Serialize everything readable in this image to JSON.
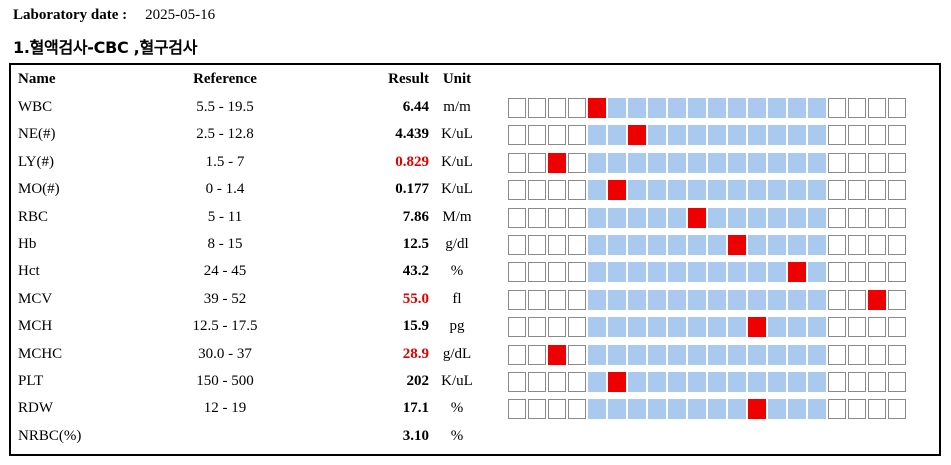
{
  "header": {
    "lab_date_label": "Laboratory date :",
    "lab_date_value": "2025-05-16"
  },
  "section_title": "1.혈액검사-CBC ,혈구검사",
  "columns": {
    "name": "Name",
    "reference": "Reference",
    "result": "Result",
    "unit": "Unit"
  },
  "colors": {
    "normal_range": "#a9c9ee",
    "marker": "#ee0000",
    "abnormal_text": "#e00000"
  },
  "rows": [
    {
      "name": "WBC",
      "reference": "5.5 - 19.5",
      "result": "6.44",
      "unit": "m/m",
      "abnormal": false,
      "marker_box": 4
    },
    {
      "name": "NE(#)",
      "reference": "2.5 - 12.8",
      "result": "4.439",
      "unit": "K/uL",
      "abnormal": false,
      "marker_box": 6
    },
    {
      "name": "LY(#)",
      "reference": "1.5 - 7",
      "result": "0.829",
      "unit": "K/uL",
      "abnormal": true,
      "marker_box": 2
    },
    {
      "name": "MO(#)",
      "reference": "0 - 1.4",
      "result": "0.177",
      "unit": "K/uL",
      "abnormal": false,
      "marker_box": 5
    },
    {
      "name": "RBC",
      "reference": "5 - 11",
      "result": "7.86",
      "unit": "M/m",
      "abnormal": false,
      "marker_box": 9
    },
    {
      "name": "Hb",
      "reference": "8 - 15",
      "result": "12.5",
      "unit": "g/dl",
      "abnormal": false,
      "marker_box": 11
    },
    {
      "name": "Hct",
      "reference": "24 - 45",
      "result": "43.2",
      "unit": "%",
      "abnormal": false,
      "marker_box": 14
    },
    {
      "name": "MCV",
      "reference": "39 - 52",
      "result": "55.0",
      "unit": "fl",
      "abnormal": true,
      "marker_box": 18
    },
    {
      "name": "MCH",
      "reference": "12.5 - 17.5",
      "result": "15.9",
      "unit": "pg",
      "abnormal": false,
      "marker_box": 12
    },
    {
      "name": "MCHC",
      "reference": "30.0 - 37",
      "result": "28.9",
      "unit": "g/dL",
      "abnormal": true,
      "marker_box": 2
    },
    {
      "name": "PLT",
      "reference": "150 - 500",
      "result": "202",
      "unit": "K/uL",
      "abnormal": false,
      "marker_box": 5
    },
    {
      "name": "RDW",
      "reference": "12 - 19",
      "result": "17.1",
      "unit": "%",
      "abnormal": false,
      "marker_box": 12
    },
    {
      "name": "NRBC(%)",
      "reference": "",
      "result": "3.10",
      "unit": "%",
      "abnormal": false,
      "marker_box": null
    }
  ]
}
